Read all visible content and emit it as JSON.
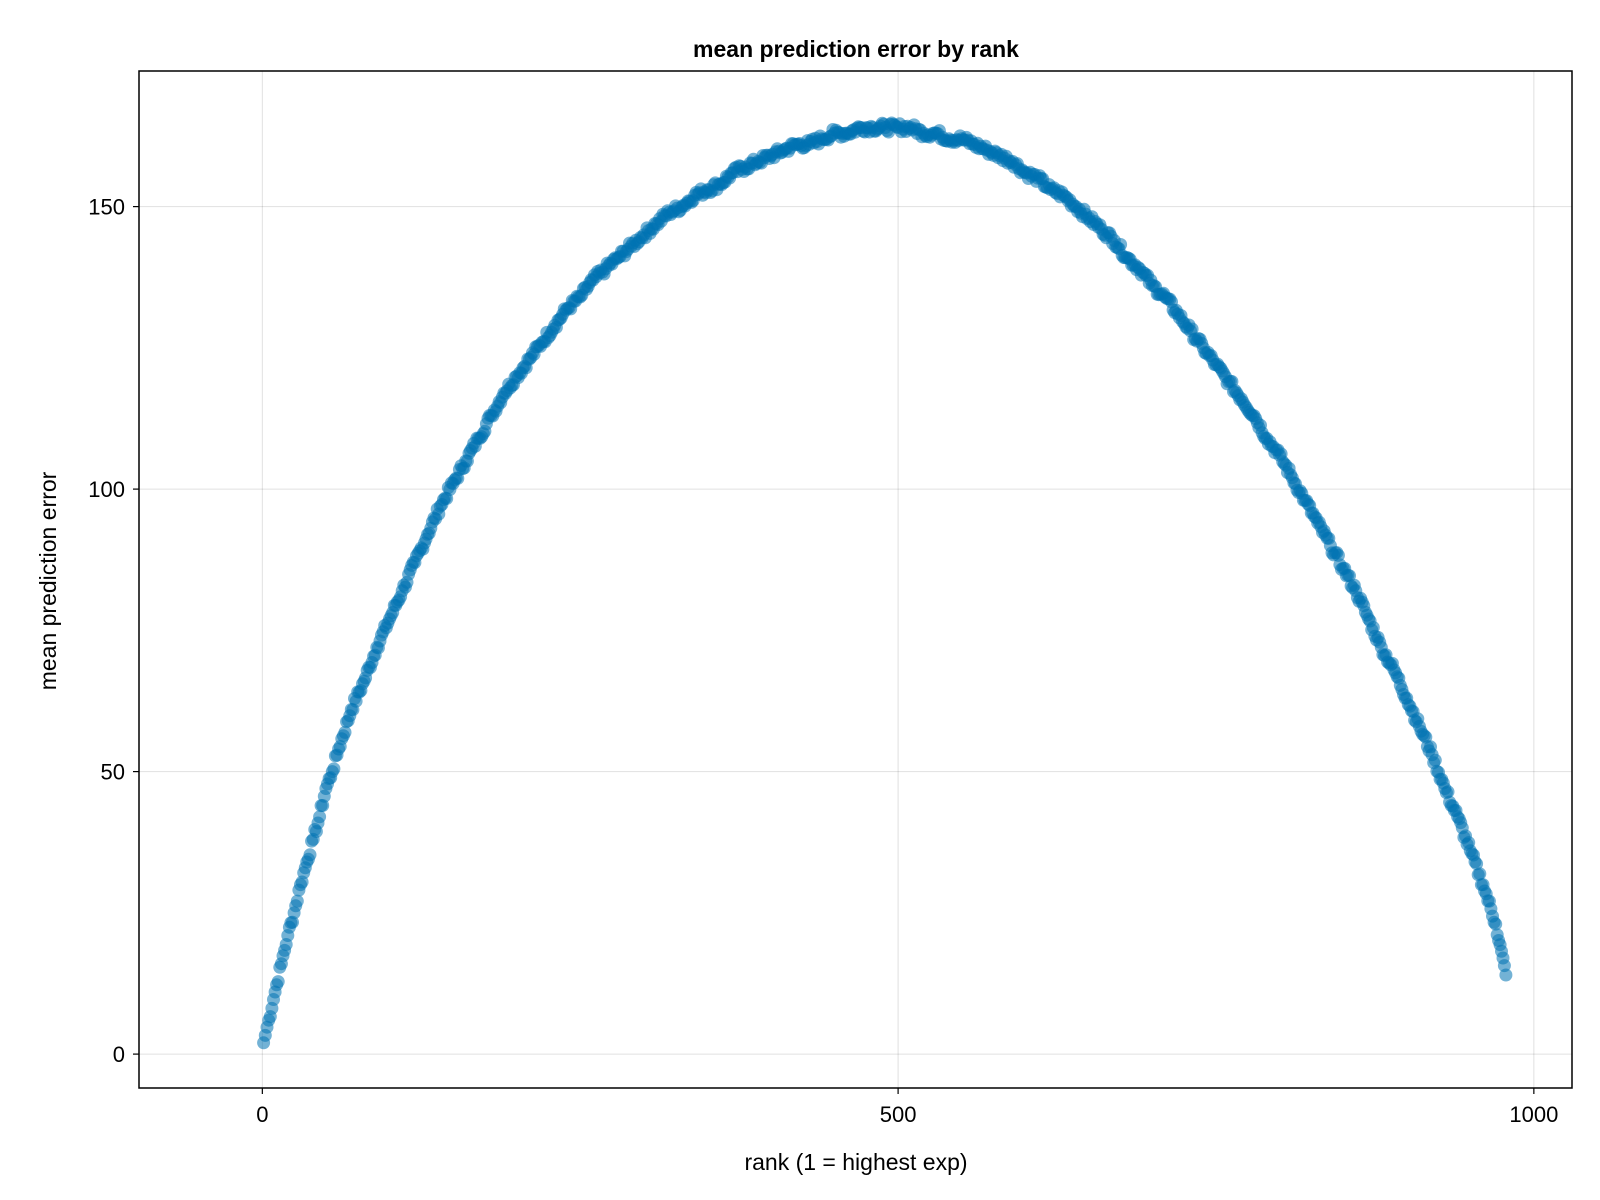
{
  "chart_data": {
    "type": "scatter",
    "title": "mean prediction error by rank",
    "xlabel": "rank (1 = highest exp)",
    "ylabel": "mean prediction error",
    "xlim": [
      -97,
      1030
    ],
    "ylim": [
      -6,
      174
    ],
    "xticks": [
      0,
      500,
      1000
    ],
    "yticks": [
      0,
      50,
      100,
      150
    ],
    "grid": true,
    "marker_color": "#0072B2",
    "marker_opacity": 0.55,
    "series": [
      {
        "points": [
          [
            1,
            2
          ],
          [
            5,
            6
          ],
          [
            10,
            11
          ],
          [
            15,
            16
          ],
          [
            20,
            21
          ],
          [
            25,
            25
          ],
          [
            30,
            30
          ],
          [
            35,
            34
          ],
          [
            40,
            38
          ],
          [
            45,
            42
          ],
          [
            50,
            47
          ],
          [
            55,
            50
          ],
          [
            60,
            54
          ],
          [
            70,
            61
          ],
          [
            80,
            66
          ],
          [
            90,
            72
          ],
          [
            100,
            77
          ],
          [
            110,
            82
          ],
          [
            120,
            87
          ],
          [
            130,
            92
          ],
          [
            140,
            97
          ],
          [
            150,
            101
          ],
          [
            160,
            105
          ],
          [
            170,
            109
          ],
          [
            180,
            113
          ],
          [
            190,
            117
          ],
          [
            200,
            120
          ],
          [
            210,
            123
          ],
          [
            220,
            126
          ],
          [
            230,
            129
          ],
          [
            240,
            132
          ],
          [
            250,
            134
          ],
          [
            260,
            137
          ],
          [
            270,
            139
          ],
          [
            280,
            141
          ],
          [
            290,
            143
          ],
          [
            300,
            145
          ],
          [
            310,
            147
          ],
          [
            320,
            149
          ],
          [
            330,
            150
          ],
          [
            340,
            152
          ],
          [
            350,
            153
          ],
          [
            360,
            154
          ],
          [
            370,
            156
          ],
          [
            380,
            157
          ],
          [
            390,
            158
          ],
          [
            400,
            159
          ],
          [
            410,
            160
          ],
          [
            420,
            161
          ],
          [
            430,
            161
          ],
          [
            440,
            162
          ],
          [
            450,
            163
          ],
          [
            460,
            163
          ],
          [
            470,
            164
          ],
          [
            480,
            164
          ],
          [
            490,
            164
          ],
          [
            500,
            164
          ],
          [
            510,
            164
          ],
          [
            520,
            163
          ],
          [
            530,
            163
          ],
          [
            540,
            162
          ],
          [
            550,
            162
          ],
          [
            560,
            161
          ],
          [
            570,
            160
          ],
          [
            580,
            159
          ],
          [
            590,
            158
          ],
          [
            600,
            156
          ],
          [
            610,
            155
          ],
          [
            620,
            153
          ],
          [
            630,
            152
          ],
          [
            640,
            150
          ],
          [
            650,
            148
          ],
          [
            660,
            146
          ],
          [
            670,
            144
          ],
          [
            680,
            141
          ],
          [
            690,
            139
          ],
          [
            700,
            136
          ],
          [
            710,
            134
          ],
          [
            720,
            131
          ],
          [
            730,
            128
          ],
          [
            740,
            125
          ],
          [
            750,
            122
          ],
          [
            760,
            119
          ],
          [
            770,
            116
          ],
          [
            780,
            113
          ],
          [
            790,
            109
          ],
          [
            800,
            106
          ],
          [
            810,
            102
          ],
          [
            820,
            98
          ],
          [
            830,
            94
          ],
          [
            840,
            90
          ],
          [
            850,
            86
          ],
          [
            860,
            82
          ],
          [
            870,
            77
          ],
          [
            880,
            72
          ],
          [
            890,
            68
          ],
          [
            900,
            63
          ],
          [
            910,
            58
          ],
          [
            920,
            53
          ],
          [
            930,
            47
          ],
          [
            940,
            42
          ],
          [
            950,
            36
          ],
          [
            960,
            30
          ],
          [
            970,
            23
          ],
          [
            978,
            14
          ]
        ]
      }
    ]
  }
}
